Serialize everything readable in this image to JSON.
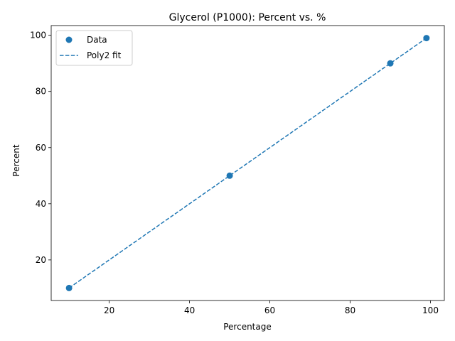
{
  "chart_data": {
    "type": "scatter",
    "title": "Glycerol (P1000): Percent vs. %",
    "xlabel": "Percentage",
    "ylabel": "Percent",
    "xlim": [
      5.55,
      103.45
    ],
    "ylim": [
      5.55,
      103.45
    ],
    "xticks": [
      20,
      40,
      60,
      80,
      100
    ],
    "yticks": [
      20,
      40,
      60,
      80,
      100
    ],
    "grid": false,
    "legend": "top-left",
    "series": [
      {
        "name": "Data",
        "kind": "scatter",
        "color": "#1f77b4",
        "x": [
          10,
          50,
          90,
          99
        ],
        "y": [
          10,
          50,
          90,
          99
        ]
      },
      {
        "name": "Poly2 fit",
        "kind": "line",
        "style": "dashed",
        "color": "#1f77b4",
        "x": [
          10,
          50,
          90,
          99
        ],
        "y": [
          10,
          50,
          90,
          99
        ]
      }
    ]
  }
}
